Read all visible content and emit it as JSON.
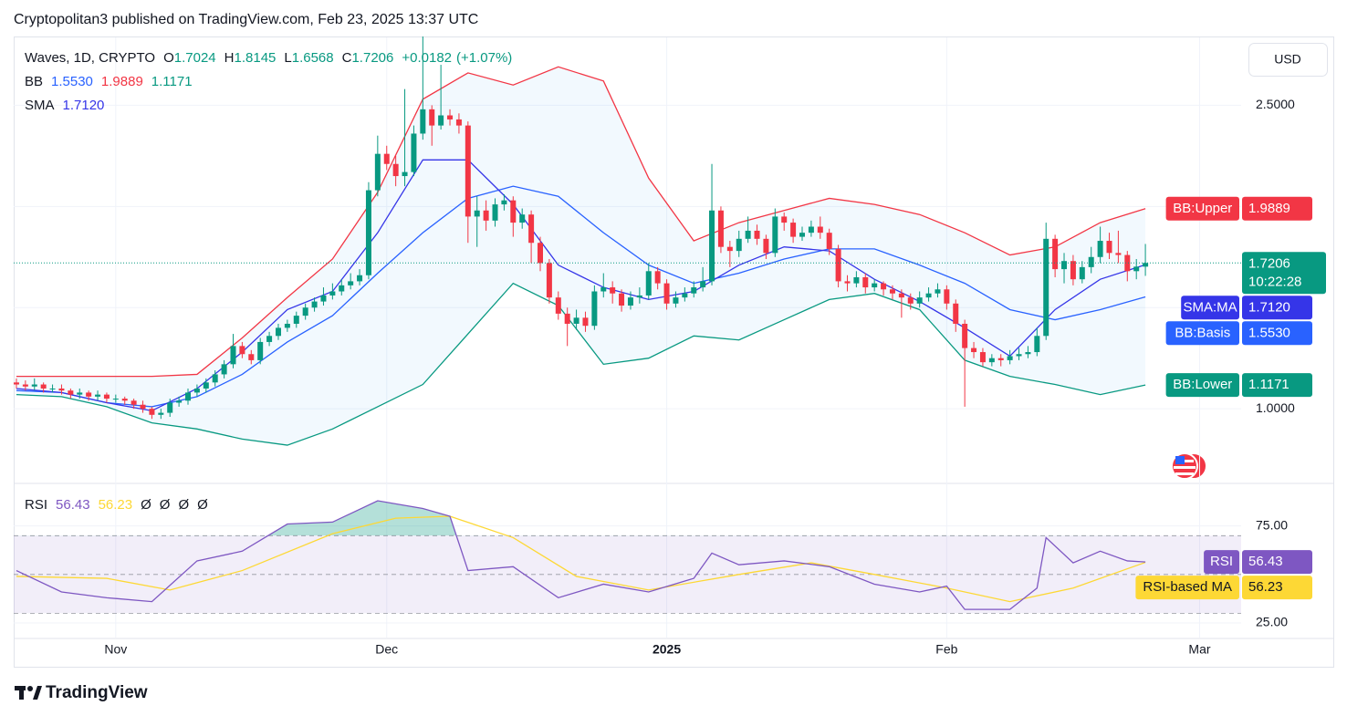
{
  "header": {
    "published": "Cryptopolitan3 published on TradingView.com, Feb 23, 2025 13:37 UTC"
  },
  "brand": "TradingView",
  "chart_data": [
    {
      "type": "candlestick",
      "title": "Waves, 1D, CRYPTO",
      "currency": "USD",
      "countdown": "10:22:28",
      "ohlc_labels": [
        "O",
        "H",
        "L",
        "C"
      ],
      "change_label": "+0.0182",
      "change_pct_label": "(+1.07%)",
      "up_color": "#089981",
      "down_color": "#f23645",
      "xlim": [
        -0.3,
        135.6
      ],
      "xticks": [
        {
          "value": 11,
          "label": "Nov"
        },
        {
          "value": 41,
          "label": "Dec"
        },
        {
          "value": 72,
          "label": "2025"
        },
        {
          "value": 103,
          "label": "Feb"
        },
        {
          "value": 131,
          "label": "Mar"
        }
      ],
      "ylim": [
        0.64,
        2.84
      ],
      "yticks": [
        {
          "value": 2.5,
          "label": "2.5000"
        },
        {
          "value": 1,
          "label": "1.0000"
        }
      ],
      "minor_gridlines": [
        1.5,
        2.0
      ],
      "candles": [
        [
          1.13,
          1.15,
          1.1,
          1.12
        ],
        [
          1.12,
          1.14,
          1.09,
          1.11
        ],
        [
          1.11,
          1.15,
          1.09,
          1.12
        ],
        [
          1.12,
          1.13,
          1.08,
          1.1
        ],
        [
          1.1,
          1.12,
          1.08,
          1.1
        ],
        [
          1.1,
          1.12,
          1.07,
          1.09
        ],
        [
          1.09,
          1.1,
          1.05,
          1.07
        ],
        [
          1.07,
          1.1,
          1.05,
          1.08
        ],
        [
          1.08,
          1.09,
          1.04,
          1.06
        ],
        [
          1.06,
          1.09,
          1.04,
          1.07
        ],
        [
          1.07,
          1.08,
          1.03,
          1.05
        ],
        [
          1.05,
          1.07,
          1.03,
          1.05
        ],
        [
          1.05,
          1.06,
          1.02,
          1.04
        ],
        [
          1.04,
          1.05,
          1.0,
          1.02
        ],
        [
          1.02,
          1.04,
          0.98,
          1.0
        ],
        [
          1.0,
          1.01,
          0.95,
          0.97
        ],
        [
          0.97,
          1.0,
          0.95,
          0.98
        ],
        [
          0.98,
          1.05,
          0.96,
          1.03
        ],
        [
          1.03,
          1.06,
          1.01,
          1.04
        ],
        [
          1.04,
          1.1,
          1.02,
          1.08
        ],
        [
          1.08,
          1.12,
          1.06,
          1.1
        ],
        [
          1.1,
          1.15,
          1.08,
          1.13
        ],
        [
          1.13,
          1.19,
          1.11,
          1.17
        ],
        [
          1.17,
          1.24,
          1.15,
          1.22
        ],
        [
          1.22,
          1.37,
          1.2,
          1.31
        ],
        [
          1.31,
          1.33,
          1.25,
          1.27
        ],
        [
          1.27,
          1.29,
          1.22,
          1.24
        ],
        [
          1.24,
          1.35,
          1.22,
          1.33
        ],
        [
          1.33,
          1.38,
          1.31,
          1.36
        ],
        [
          1.36,
          1.42,
          1.34,
          1.4
        ],
        [
          1.4,
          1.44,
          1.38,
          1.42
        ],
        [
          1.42,
          1.48,
          1.4,
          1.46
        ],
        [
          1.46,
          1.52,
          1.44,
          1.5
        ],
        [
          1.5,
          1.55,
          1.48,
          1.53
        ],
        [
          1.53,
          1.6,
          1.51,
          1.56
        ],
        [
          1.56,
          1.62,
          1.54,
          1.58
        ],
        [
          1.58,
          1.64,
          1.56,
          1.61
        ],
        [
          1.61,
          1.67,
          1.59,
          1.63
        ],
        [
          1.63,
          1.69,
          1.61,
          1.66
        ],
        [
          1.66,
          2.12,
          1.64,
          2.08
        ],
        [
          2.08,
          2.35,
          2.05,
          2.26
        ],
        [
          2.26,
          2.3,
          2.18,
          2.21
        ],
        [
          2.21,
          2.25,
          2.1,
          2.15
        ],
        [
          2.15,
          2.58,
          2.1,
          2.17
        ],
        [
          2.17,
          2.4,
          2.15,
          2.36
        ],
        [
          2.36,
          2.84,
          2.33,
          2.48
        ],
        [
          2.48,
          2.5,
          2.3,
          2.4
        ],
        [
          2.4,
          2.7,
          2.38,
          2.45
        ],
        [
          2.45,
          2.48,
          2.4,
          2.43
        ],
        [
          2.43,
          2.46,
          2.36,
          2.4
        ],
        [
          2.4,
          2.42,
          1.82,
          1.95
        ],
        [
          1.95,
          2.05,
          1.8,
          1.98
        ],
        [
          1.98,
          2.03,
          1.88,
          1.93
        ],
        [
          1.93,
          2.04,
          1.9,
          2.01
        ],
        [
          2.01,
          2.06,
          1.98,
          2.03
        ],
        [
          2.03,
          2.05,
          1.85,
          1.92
        ],
        [
          1.92,
          1.99,
          1.89,
          1.96
        ],
        [
          1.96,
          1.98,
          1.72,
          1.82
        ],
        [
          1.82,
          1.85,
          1.68,
          1.72
        ],
        [
          1.72,
          1.74,
          1.52,
          1.55
        ],
        [
          1.55,
          1.58,
          1.44,
          1.47
        ],
        [
          1.47,
          1.5,
          1.31,
          1.42
        ],
        [
          1.42,
          1.49,
          1.39,
          1.45
        ],
        [
          1.45,
          1.48,
          1.38,
          1.41
        ],
        [
          1.41,
          1.61,
          1.39,
          1.58
        ],
        [
          1.58,
          1.67,
          1.55,
          1.6
        ],
        [
          1.6,
          1.63,
          1.52,
          1.57
        ],
        [
          1.57,
          1.59,
          1.48,
          1.51
        ],
        [
          1.51,
          1.58,
          1.49,
          1.55
        ],
        [
          1.55,
          1.6,
          1.52,
          1.56
        ],
        [
          1.56,
          1.72,
          1.54,
          1.68
        ],
        [
          1.68,
          1.7,
          1.59,
          1.62
        ],
        [
          1.62,
          1.64,
          1.49,
          1.52
        ],
        [
          1.52,
          1.58,
          1.5,
          1.55
        ],
        [
          1.55,
          1.6,
          1.53,
          1.57
        ],
        [
          1.57,
          1.63,
          1.55,
          1.6
        ],
        [
          1.6,
          1.7,
          1.58,
          1.63
        ],
        [
          1.63,
          2.21,
          1.61,
          1.98
        ],
        [
          1.98,
          2.0,
          1.77,
          1.8
        ],
        [
          1.8,
          1.83,
          1.7,
          1.78
        ],
        [
          1.78,
          1.88,
          1.75,
          1.84
        ],
        [
          1.84,
          1.95,
          1.82,
          1.88
        ],
        [
          1.88,
          1.91,
          1.81,
          1.84
        ],
        [
          1.84,
          1.86,
          1.74,
          1.77
        ],
        [
          1.77,
          1.99,
          1.75,
          1.95
        ],
        [
          1.95,
          1.97,
          1.88,
          1.92
        ],
        [
          1.92,
          1.94,
          1.82,
          1.85
        ],
        [
          1.85,
          1.9,
          1.83,
          1.87
        ],
        [
          1.87,
          1.93,
          1.85,
          1.9
        ],
        [
          1.9,
          1.95,
          1.84,
          1.87
        ],
        [
          1.87,
          1.89,
          1.76,
          1.79
        ],
        [
          1.79,
          1.81,
          1.6,
          1.63
        ],
        [
          1.63,
          1.66,
          1.58,
          1.62
        ],
        [
          1.62,
          1.68,
          1.6,
          1.65
        ],
        [
          1.65,
          1.67,
          1.57,
          1.6
        ],
        [
          1.6,
          1.64,
          1.58,
          1.62
        ],
        [
          1.62,
          1.63,
          1.56,
          1.59
        ],
        [
          1.59,
          1.61,
          1.54,
          1.57
        ],
        [
          1.57,
          1.59,
          1.45,
          1.55
        ],
        [
          1.55,
          1.57,
          1.49,
          1.52
        ],
        [
          1.52,
          1.58,
          1.5,
          1.55
        ],
        [
          1.55,
          1.6,
          1.53,
          1.57
        ],
        [
          1.57,
          1.62,
          1.55,
          1.59
        ],
        [
          1.59,
          1.61,
          1.49,
          1.52
        ],
        [
          1.52,
          1.54,
          1.38,
          1.42
        ],
        [
          1.42,
          1.44,
          1.01,
          1.3
        ],
        [
          1.3,
          1.33,
          1.25,
          1.28
        ],
        [
          1.28,
          1.3,
          1.21,
          1.23
        ],
        [
          1.23,
          1.27,
          1.21,
          1.25
        ],
        [
          1.25,
          1.27,
          1.21,
          1.24
        ],
        [
          1.24,
          1.29,
          1.22,
          1.26
        ],
        [
          1.26,
          1.3,
          1.24,
          1.27
        ],
        [
          1.27,
          1.31,
          1.25,
          1.28
        ],
        [
          1.28,
          1.4,
          1.26,
          1.36
        ],
        [
          1.36,
          1.92,
          1.34,
          1.84
        ],
        [
          1.84,
          1.86,
          1.65,
          1.69
        ],
        [
          1.69,
          1.77,
          1.62,
          1.73
        ],
        [
          1.73,
          1.76,
          1.61,
          1.64
        ],
        [
          1.64,
          1.73,
          1.62,
          1.7
        ],
        [
          1.7,
          1.8,
          1.67,
          1.75
        ],
        [
          1.75,
          1.9,
          1.72,
          1.83
        ],
        [
          1.83,
          1.87,
          1.74,
          1.77
        ],
        [
          1.77,
          1.88,
          1.72,
          1.76
        ],
        [
          1.76,
          1.78,
          1.63,
          1.68
        ],
        [
          1.68,
          1.74,
          1.64,
          1.7024
        ],
        [
          1.7024,
          1.8145,
          1.6568,
          1.7206
        ]
      ],
      "bands": {
        "upper": {
          "name": "BB:Upper",
          "color": "#f23645",
          "value_label": "1.9889",
          "x": [
            0,
            5,
            10,
            15,
            20,
            25,
            30,
            35,
            40,
            45,
            50,
            55,
            60,
            65,
            70,
            75,
            80,
            85,
            90,
            95,
            100,
            105,
            110,
            115,
            120,
            125
          ],
          "values": [
            1.16,
            1.16,
            1.16,
            1.16,
            1.17,
            1.35,
            1.55,
            1.74,
            2.07,
            2.53,
            2.66,
            2.6,
            2.69,
            2.62,
            2.14,
            1.83,
            1.92,
            1.98,
            2.04,
            2.01,
            1.96,
            1.87,
            1.76,
            1.8,
            1.92,
            1.9889
          ]
        },
        "basis": {
          "name": "BB:Basis",
          "color": "#2962ff",
          "value_label": "1.5530",
          "x": [
            0,
            5,
            10,
            15,
            20,
            25,
            30,
            35,
            40,
            45,
            50,
            55,
            60,
            65,
            70,
            75,
            80,
            85,
            90,
            95,
            100,
            105,
            110,
            115,
            120,
            125
          ],
          "values": [
            1.09,
            1.08,
            1.03,
            1.01,
            1.06,
            1.17,
            1.33,
            1.46,
            1.67,
            1.87,
            2.04,
            2.1,
            2.05,
            1.87,
            1.71,
            1.62,
            1.67,
            1.74,
            1.79,
            1.79,
            1.71,
            1.62,
            1.49,
            1.44,
            1.49,
            1.553
          ]
        },
        "lower": {
          "name": "BB:Lower",
          "color": "#089981",
          "value_label": "1.1171",
          "x": [
            0,
            5,
            10,
            15,
            20,
            25,
            30,
            35,
            40,
            45,
            50,
            55,
            60,
            65,
            70,
            75,
            80,
            85,
            90,
            95,
            100,
            105,
            110,
            115,
            120,
            125
          ],
          "values": [
            1.07,
            1.06,
            1.01,
            0.93,
            0.9,
            0.85,
            0.82,
            0.9,
            1.01,
            1.12,
            1.37,
            1.62,
            1.51,
            1.22,
            1.25,
            1.36,
            1.34,
            1.44,
            1.54,
            1.57,
            1.49,
            1.24,
            1.16,
            1.12,
            1.07,
            1.1171
          ]
        },
        "fill_color": "#2196f3"
      },
      "sma": {
        "name": "SMA:MA",
        "color": "#3535e8",
        "value_label": "1.7120",
        "x": [
          0,
          5,
          10,
          15,
          20,
          25,
          30,
          35,
          40,
          45,
          50,
          55,
          60,
          65,
          70,
          75,
          80,
          85,
          90,
          95,
          100,
          105,
          110,
          115,
          120,
          125
        ],
        "values": [
          1.1,
          1.08,
          1.03,
          0.99,
          1.1,
          1.28,
          1.49,
          1.58,
          1.87,
          2.23,
          2.23,
          2.01,
          1.71,
          1.6,
          1.54,
          1.58,
          1.71,
          1.8,
          1.78,
          1.64,
          1.53,
          1.4,
          1.26,
          1.49,
          1.64,
          1.712
        ]
      },
      "legend_rows": [
        {
          "name": "BB",
          "values": [
            "1.5530",
            "1.9889",
            "1.1171"
          ]
        },
        {
          "name": "SMA",
          "values": [
            "1.7120"
          ]
        }
      ]
    },
    {
      "type": "line",
      "title": "RSI",
      "xlim": [
        -0.3,
        135.6
      ],
      "ylim": [
        17,
        96
      ],
      "yticks": [
        {
          "value": 75,
          "label": "75.00"
        },
        {
          "value": 25,
          "label": "25.00"
        }
      ],
      "levels": [
        30,
        50,
        70
      ],
      "band_color": "#7e57c2",
      "overbought_fill": "#089981",
      "legend_values": [
        "56.43",
        "56.23",
        "Ø",
        "Ø",
        "Ø",
        "Ø"
      ],
      "series": [
        {
          "name": "RSI",
          "color": "#7e57c2",
          "value_label": "56.43",
          "x": [
            0,
            5,
            10,
            15,
            20,
            25,
            30,
            35,
            40,
            45,
            48,
            50,
            55,
            60,
            65,
            70,
            75,
            77,
            80,
            85,
            90,
            95,
            100,
            103,
            105,
            110,
            113,
            114,
            117,
            120,
            123,
            125
          ],
          "values": [
            52,
            41,
            38,
            36,
            57,
            62,
            76,
            77,
            88,
            84,
            80,
            52,
            54,
            38,
            45,
            41,
            48,
            61,
            55,
            57,
            54,
            45,
            41,
            44,
            32,
            32,
            43,
            69,
            56,
            62,
            57,
            56.43
          ]
        },
        {
          "name": "RSI-based MA",
          "color": "#fdd835",
          "value_label": "56.23",
          "x": [
            0,
            10,
            17,
            25,
            35,
            42,
            48,
            55,
            62,
            70,
            80,
            88,
            95,
            103,
            110,
            117,
            125
          ],
          "values": [
            49,
            48,
            42,
            52,
            71,
            79,
            80,
            69,
            49,
            42,
            50,
            56,
            50,
            43,
            36,
            43,
            56.23
          ]
        }
      ]
    }
  ]
}
